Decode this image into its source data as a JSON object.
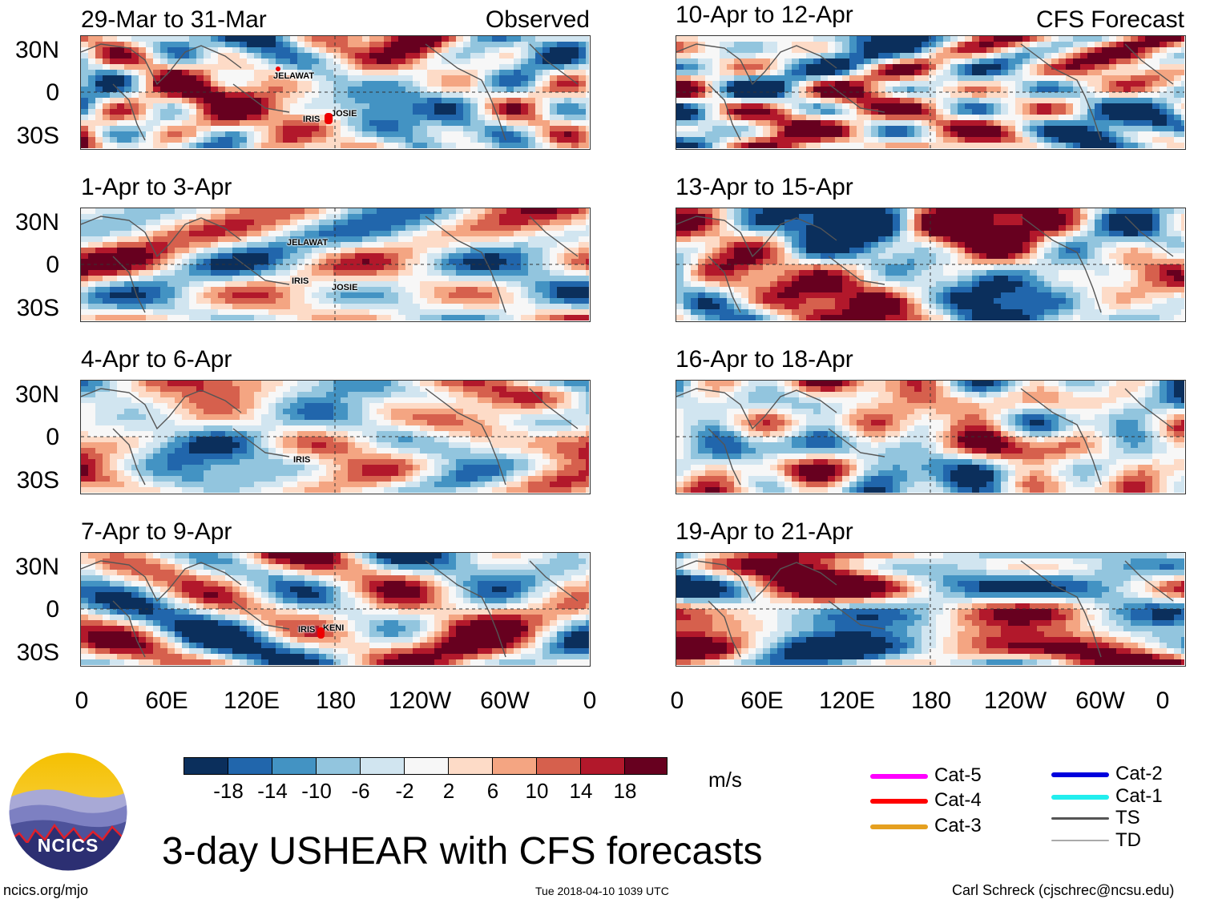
{
  "chart_data": {
    "type": "heatmap",
    "title": "3-day USHEAR with CFS forecasts",
    "variable": "USHEAR",
    "units": "m/s",
    "column_titles": [
      "Observed",
      "CFS Forecast"
    ],
    "x_ticks": [
      "0",
      "60E",
      "120E",
      "180",
      "120W",
      "60W",
      "0"
    ],
    "y_ticks": [
      "30N",
      "0",
      "30S"
    ],
    "colorbar_ticks": [
      "-18",
      "-14",
      "-10",
      "-6",
      "-2",
      "2",
      "6",
      "10",
      "14",
      "18"
    ],
    "colorbar_colors": [
      "#0b2f5c",
      "#2166ac",
      "#4393c3",
      "#92c5de",
      "#d1e5f0",
      "#f7f7f7",
      "#fddbc7",
      "#f4a582",
      "#d6604d",
      "#b2182b",
      "#67001f"
    ],
    "panels": [
      {
        "title": "29-Mar to 31-Mar",
        "column": "Observed",
        "storms": [
          "JELAWAT",
          "JOSIE",
          "IRIS"
        ]
      },
      {
        "title": "1-Apr to 3-Apr",
        "column": "Observed",
        "storms": [
          "JELAWAT",
          "IRIS",
          "JOSIE"
        ]
      },
      {
        "title": "4-Apr to 6-Apr",
        "column": "Observed",
        "storms": [
          "IRIS"
        ]
      },
      {
        "title": "7-Apr to 9-Apr",
        "column": "Observed",
        "storms": [
          "IRIS",
          "KENI"
        ]
      },
      {
        "title": "10-Apr to 12-Apr",
        "column": "CFS Forecast",
        "storms": []
      },
      {
        "title": "13-Apr to 15-Apr",
        "column": "CFS Forecast",
        "storms": []
      },
      {
        "title": "16-Apr to 18-Apr",
        "column": "CFS Forecast",
        "storms": []
      },
      {
        "title": "19-Apr to 21-Apr",
        "column": "CFS Forecast",
        "storms": []
      }
    ],
    "storm_legend": [
      {
        "label": "Cat-5",
        "color": "#ff00ff"
      },
      {
        "label": "Cat-4",
        "color": "#ff0000"
      },
      {
        "label": "Cat-3",
        "color": "#e5a020"
      },
      {
        "label": "Cat-2",
        "color": "#0000dd"
      },
      {
        "label": "Cat-1",
        "color": "#22eeee"
      },
      {
        "label": "TS",
        "color": "#555555"
      },
      {
        "label": "TD",
        "color": "#aaaaaa"
      }
    ]
  },
  "logo": {
    "text": "NCICS"
  },
  "footer": {
    "left": "ncics.org/mjo",
    "center": "Tue 2018-04-10 1039 UTC",
    "right": "Carl Schreck (cjschrec@ncsu.edu)"
  }
}
